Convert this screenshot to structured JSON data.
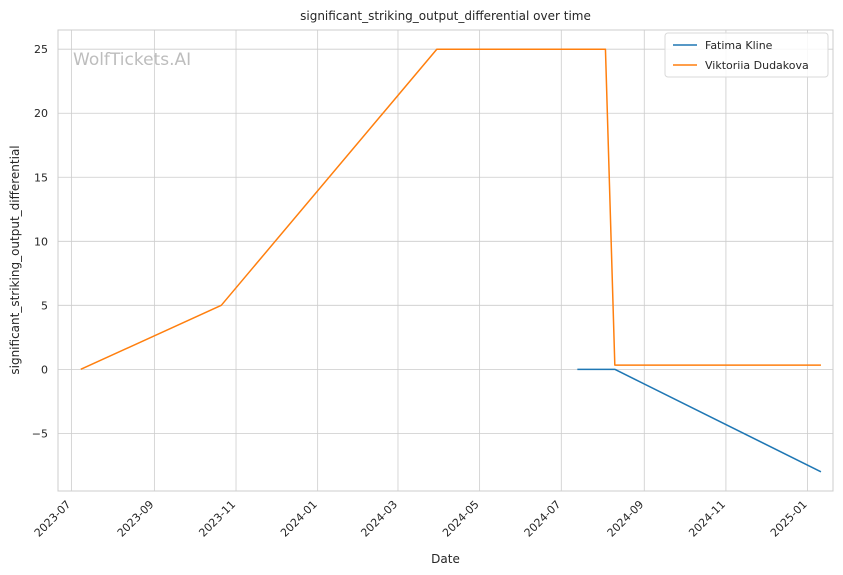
{
  "chart_data": {
    "type": "line",
    "title": "significant_striking_output_differential over time",
    "xlabel": "Date",
    "ylabel": "significant_striking_output_differential",
    "watermark": "WolfTickets.AI",
    "x_axis_type": "date",
    "xlim": [
      "2023-06-21",
      "2025-01-20"
    ],
    "ylim": [
      -9.5,
      26.5
    ],
    "x_ticks": [
      "2023-07-01",
      "2023-09-01",
      "2023-11-01",
      "2024-01-01",
      "2024-03-01",
      "2024-05-01",
      "2024-07-01",
      "2024-09-01",
      "2024-11-01",
      "2025-01-01"
    ],
    "x_tick_labels": [
      "2023-07",
      "2023-09",
      "2023-11",
      "2024-01",
      "2024-03",
      "2024-05",
      "2024-07",
      "2024-09",
      "2024-11",
      "2025-01"
    ],
    "y_ticks": [
      -5,
      0,
      5,
      10,
      15,
      20,
      25
    ],
    "y_tick_labels": [
      "−5",
      "0",
      "5",
      "10",
      "15",
      "20",
      "25"
    ],
    "grid": true,
    "legend_position": "top-right",
    "series": [
      {
        "name": "Fatima Kline",
        "color": "#1f77b4",
        "x": [
          "2024-07-13",
          "2024-08-10",
          "2025-01-11"
        ],
        "y": [
          0,
          0,
          -8
        ]
      },
      {
        "name": "Viktoriia Dudakova",
        "color": "#ff7f0e",
        "x": [
          "2023-07-08",
          "2023-10-21",
          "2024-03-30",
          "2024-08-03",
          "2024-08-10",
          "2025-01-11"
        ],
        "y": [
          0,
          5,
          25,
          25,
          0.33,
          0.33
        ]
      }
    ]
  }
}
